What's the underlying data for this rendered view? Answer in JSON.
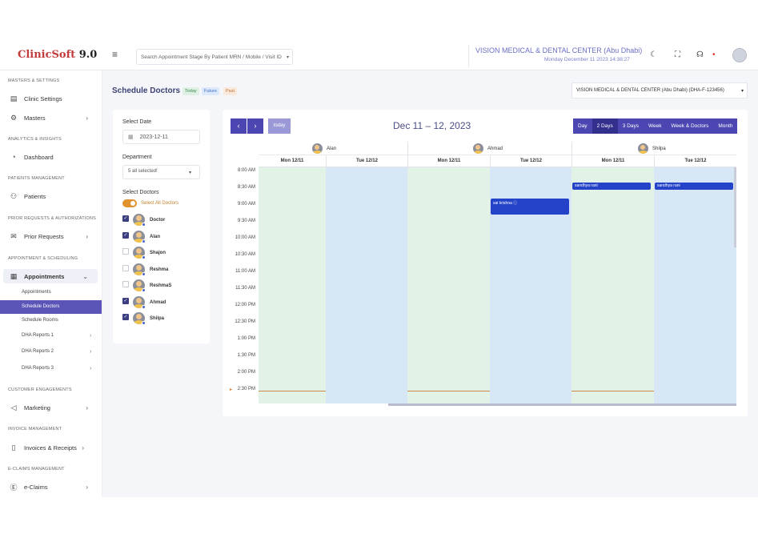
{
  "app": {
    "logo": "ClinicSoft",
    "version": "9.0"
  },
  "topbar": {
    "search_placeholder": "Search Appointment Stage By Patient MRN / Mobile / Visit ID",
    "center_name": "VISION MEDICAL & DENTAL CENTER (Abu Dhabi)",
    "datetime": "Monday December 11 2023 14:38:27"
  },
  "sidebar": {
    "sections": {
      "masters": "MASTERS & SETTINGS",
      "analytics": "ANALYTICS & INSIGHTS",
      "patients": "PATIENTS MANAGEMENT",
      "prior": "PRIOR REQUESTS & AUTHORIZATIONS",
      "appointment": "APPOINTMENT & SCHEDULING",
      "customer": "CUSTOMER ENGAGEMENTS",
      "invoice": "INVOICE MANAGEMENT",
      "eclaims": "E-CLAIMS MANAGEMENT"
    },
    "items": {
      "clinic_settings": "Clinic Settings",
      "masters": "Masters",
      "dashboard": "Dashboard",
      "patients": "Patients",
      "prior_requests": "Prior Requests",
      "appointments": "Appointments",
      "marketing": "Marketing",
      "invoices": "Invoices & Receipts",
      "eclaims": "e-Claims"
    },
    "sub": {
      "appointments": "Appointments",
      "schedule_doctors": "Schedule Doctors",
      "schedule_rooms": "Schedule Rooms",
      "dha1": "DHA Reports 1",
      "dha2": "DHA Reports 2",
      "dha3": "DHA Reports 3"
    }
  },
  "page": {
    "title": "Schedule Doctors",
    "badges": {
      "today": "Today",
      "future": "Future",
      "past": "Past"
    },
    "center_select": "VISION MEDICAL & DENTAL CENTER (Abu Dhabi) (DHA-F-123456)"
  },
  "filters": {
    "date_label": "Select Date",
    "date_value": "2023-12-11",
    "dept_label": "Department",
    "dept_value": "5 all selected!",
    "doctors_label": "Select Doctors",
    "select_all": "Select All Doctors",
    "doctors": [
      {
        "name": "Doctor",
        "checked": true
      },
      {
        "name": "Alan",
        "checked": true
      },
      {
        "name": "Shajon",
        "checked": false
      },
      {
        "name": "Reshma",
        "checked": false
      },
      {
        "name": "ReshmaS",
        "checked": false
      },
      {
        "name": "Ahmad",
        "checked": true
      },
      {
        "name": "Shilpa",
        "checked": true
      }
    ]
  },
  "calendar": {
    "title": "Dec 11 – 12, 2023",
    "today": "today",
    "views": [
      "Day",
      "2 Days",
      "3 Days",
      "Week",
      "Week & Doctors",
      "Month"
    ],
    "selected_view": "2 Days",
    "doctors": [
      "Alan",
      "Ahmad",
      "Shilpa"
    ],
    "days": [
      "Mon 12/11",
      "Tue 12/12"
    ],
    "times": [
      "8:00 AM",
      "8:30 AM",
      "9:00 AM",
      "9:30 AM",
      "10:00 AM",
      "10:30 AM",
      "11:00 AM",
      "11:30 AM",
      "12:00 PM",
      "12:30 PM",
      "1:00 PM",
      "1:30 PM",
      "2:00 PM",
      "2:30 PM"
    ],
    "events": [
      {
        "doctor": "Ahmad",
        "day": "Tue 12/12",
        "title": "sai krishna",
        "start": "9:00 AM",
        "end": "9:30 AM"
      },
      {
        "doctor": "Shilpa",
        "day": "Mon 12/11",
        "title": "sandhya rani",
        "start": "8:30 AM",
        "end": "8:45 AM"
      },
      {
        "doctor": "Shilpa",
        "day": "Tue 12/12",
        "title": "sandhya rani",
        "start": "8:30 AM",
        "end": "8:45 AM"
      }
    ]
  }
}
